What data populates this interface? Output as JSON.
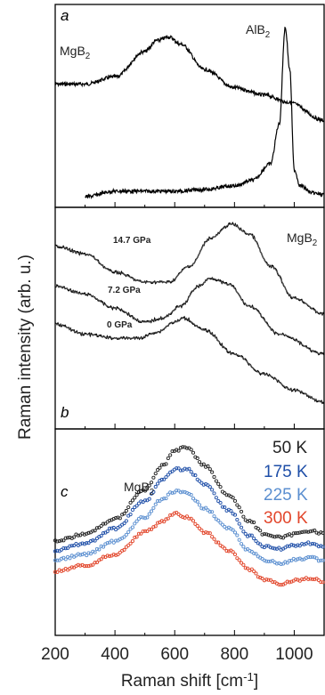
{
  "chart_data": {
    "type": "line",
    "xlabel": "Raman shift [cm-1]",
    "ylabel": "Raman intensity (arb. u.)",
    "xlim": [
      200,
      1100
    ],
    "xticks": [
      200,
      400,
      600,
      800,
      1000
    ],
    "panels": [
      {
        "letter": "a",
        "annotations": [
          "MgB2",
          "AlB2"
        ],
        "series": [
          {
            "label": "MgB2",
            "color": "#000000",
            "x": [
              200,
              300,
              400,
              500,
              540,
              580,
              620,
              700,
              800,
              900,
              980,
              1100
            ],
            "y": [
              0.62,
              0.62,
              0.66,
              0.8,
              0.86,
              0.88,
              0.84,
              0.7,
              0.6,
              0.56,
              0.52,
              0.42
            ]
          },
          {
            "label": "AlB2",
            "color": "#000000",
            "x": [
              300,
              400,
              500,
              600,
              700,
              800,
              860,
              920,
              950,
              970,
              985,
              1000,
              1020,
              1060,
              1100
            ],
            "y": [
              0.0,
              0.03,
              0.03,
              0.03,
              0.04,
              0.06,
              0.09,
              0.18,
              0.4,
              0.93,
              0.7,
              0.15,
              0.06,
              0.02,
              0.01
            ]
          }
        ]
      },
      {
        "letter": "b",
        "annotations": [
          "MgB2"
        ],
        "series": [
          {
            "label": "14.7 GPa",
            "color": "#000000",
            "x": [
              200,
              300,
              400,
              500,
              580,
              650,
              720,
              790,
              850,
              920,
              1000,
              1100
            ],
            "y": [
              0.86,
              0.82,
              0.73,
              0.68,
              0.68,
              0.76,
              0.9,
              0.97,
              0.92,
              0.76,
              0.6,
              0.52
            ]
          },
          {
            "label": "7.2 GPa",
            "color": "#000000",
            "x": [
              200,
              300,
              400,
              500,
              560,
              620,
              680,
              720,
              780,
              850,
              950,
              1100
            ],
            "y": [
              0.66,
              0.62,
              0.55,
              0.48,
              0.5,
              0.56,
              0.66,
              0.7,
              0.67,
              0.56,
              0.42,
              0.32
            ]
          },
          {
            "label": "0 GPa",
            "color": "#000000",
            "x": [
              200,
              300,
              400,
              480,
              540,
              600,
              630,
              700,
              800,
              900,
              1000,
              1100
            ],
            "y": [
              0.47,
              0.42,
              0.4,
              0.4,
              0.43,
              0.48,
              0.5,
              0.44,
              0.32,
              0.22,
              0.14,
              0.08
            ]
          }
        ]
      },
      {
        "letter": "c",
        "annotations": [
          "MgB2"
        ],
        "series": [
          {
            "label": "50 K",
            "color": "#222222",
            "x": [
              200,
              300,
              400,
              500,
              560,
              600,
              640,
              700,
              780,
              850,
              900,
              960,
              1000,
              1060,
              1100
            ],
            "y": [
              0.45,
              0.49,
              0.57,
              0.73,
              0.86,
              0.94,
              0.96,
              0.86,
              0.7,
              0.56,
              0.49,
              0.47,
              0.49,
              0.51,
              0.49
            ]
          },
          {
            "label": "175 K",
            "color": "#1f4fa8",
            "x": [
              200,
              300,
              400,
              500,
              560,
              600,
              640,
              700,
              780,
              850,
              900,
              960,
              1000,
              1060,
              1100
            ],
            "y": [
              0.4,
              0.44,
              0.52,
              0.67,
              0.78,
              0.84,
              0.84,
              0.76,
              0.62,
              0.48,
              0.42,
              0.41,
              0.43,
              0.44,
              0.42
            ]
          },
          {
            "label": "225 K",
            "color": "#5b8fd0",
            "x": [
              200,
              300,
              400,
              500,
              560,
              600,
              640,
              700,
              780,
              850,
              900,
              960,
              1000,
              1060,
              1100
            ],
            "y": [
              0.35,
              0.38,
              0.45,
              0.58,
              0.68,
              0.72,
              0.71,
              0.63,
              0.52,
              0.4,
              0.35,
              0.33,
              0.35,
              0.36,
              0.34
            ]
          },
          {
            "label": "300 K",
            "color": "#e2462b",
            "x": [
              200,
              300,
              400,
              500,
              560,
              600,
              640,
              700,
              780,
              850,
              900,
              960,
              1000,
              1060,
              1100
            ],
            "y": [
              0.29,
              0.32,
              0.38,
              0.5,
              0.56,
              0.6,
              0.58,
              0.5,
              0.4,
              0.3,
              0.24,
              0.22,
              0.24,
              0.25,
              0.23
            ]
          }
        ]
      }
    ]
  }
}
